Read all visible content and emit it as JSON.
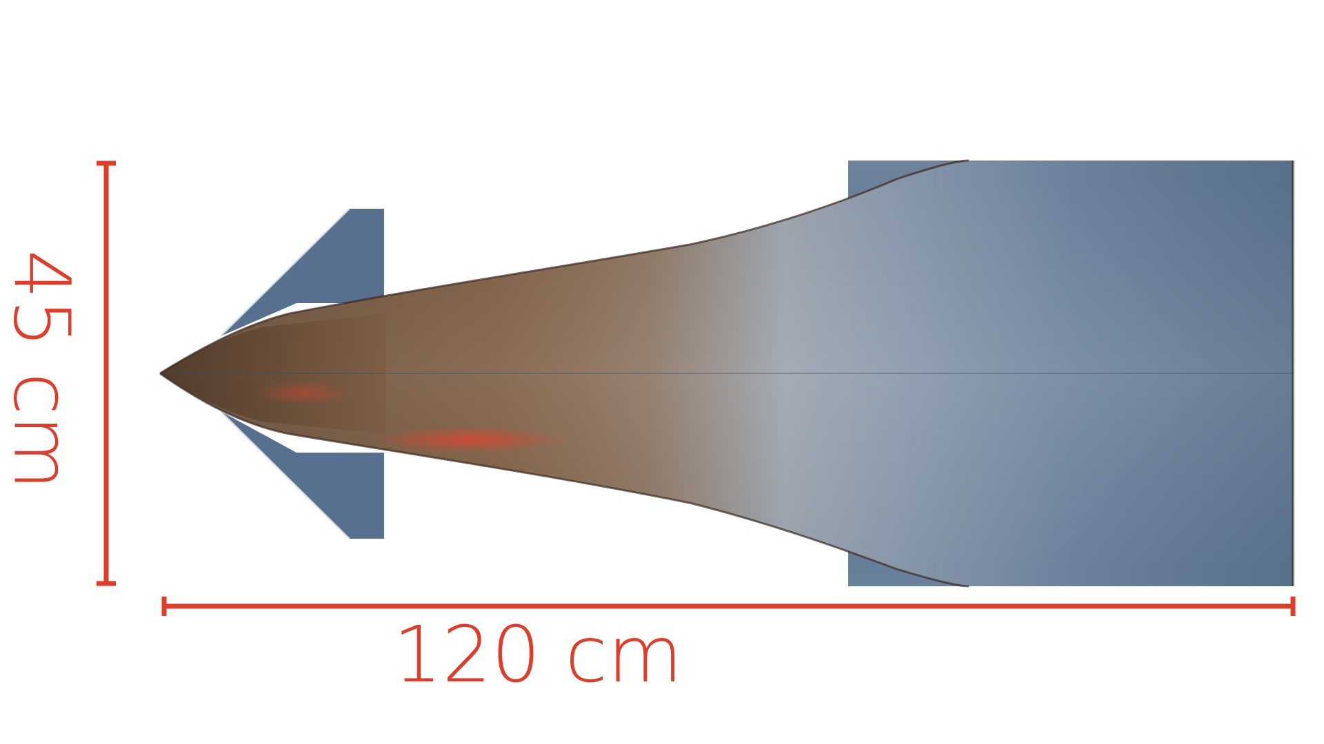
{
  "dimensions": {
    "length_label": "120 cm",
    "width_label": "45 cm"
  },
  "colors": {
    "dimension_red": "#e03c2a",
    "body_blue": "#566f8d",
    "body_brown": "#7b5a3e",
    "heat_red": "#e0442e"
  }
}
